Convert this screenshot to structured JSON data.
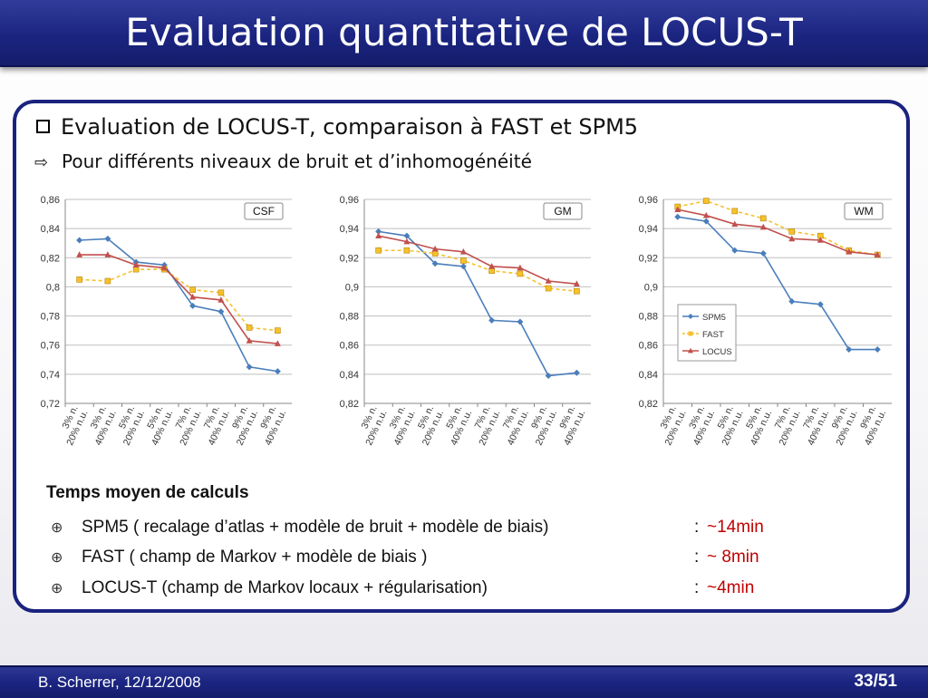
{
  "slide": {
    "title": "Evaluation quantitative de LOCUS-T",
    "bullet_main": "Evaluation de LOCUS-T, comparaison à FAST et SPM5",
    "bullet_sub": "Pour différents niveaux de bruit et d’inhomogénéité",
    "timing_title": "Temps moyen de calculs",
    "timings": [
      {
        "method": "SPM5 ( recalage d’atlas + modèle de bruit + modèle de biais)",
        "sep": ":",
        "value": "~14min"
      },
      {
        "method": "FAST ( champ de Markov + modèle de biais )",
        "sep": ":",
        "value": "~ 8min"
      },
      {
        "method": "LOCUS-T  (champ de Markov locaux + régularisation)",
        "sep": ":",
        "value": "~4min"
      }
    ],
    "footer_left": "B. Scherrer, 12/12/2008",
    "footer_right": "33/51"
  },
  "icons": {
    "bullet_main": "checkbox-icon",
    "bullet_sub": "arrow-right-icon",
    "timing_bullet": "crosshair-icon"
  },
  "colors": {
    "title_bar": "#1b2581",
    "panel_border": "#1a237e",
    "timing_value": "#c00000",
    "SPM5": "#4a7ebb",
    "FAST": "#f6c12b",
    "LOCUS": "#c0504d"
  },
  "chart_data": [
    {
      "type": "line",
      "title": "CSF",
      "categories": [
        [
          "3% n.",
          "20% n.u."
        ],
        [
          "3% n.",
          "40% n.u."
        ],
        [
          "5% n.",
          "20% n.u."
        ],
        [
          "5% n.",
          "40% n.u."
        ],
        [
          "7% n.",
          "20% n.u."
        ],
        [
          "7% n.",
          "40% n.u."
        ],
        [
          "9% n.",
          "20% n.u."
        ],
        [
          "9% n.",
          "40% n.u."
        ]
      ],
      "ylim": [
        0.72,
        0.86
      ],
      "yticks": [
        "0,72",
        "0,74",
        "0,76",
        "0,78",
        "0,8",
        "0,82",
        "0,84",
        "0,86"
      ],
      "grid": true,
      "legend": "none",
      "series": [
        {
          "name": "SPM5",
          "values": [
            0.832,
            0.833,
            0.817,
            0.815,
            0.787,
            0.783,
            0.745,
            0.742
          ]
        },
        {
          "name": "FAST",
          "values": [
            0.805,
            0.804,
            0.812,
            0.812,
            0.798,
            0.796,
            0.772,
            0.77
          ]
        },
        {
          "name": "LOCUS",
          "values": [
            0.822,
            0.822,
            0.815,
            0.813,
            0.793,
            0.791,
            0.763,
            0.761
          ]
        }
      ]
    },
    {
      "type": "line",
      "title": "GM",
      "categories": [
        [
          "3% n.",
          "20% n.u."
        ],
        [
          "3% n.",
          "40% n.u."
        ],
        [
          "5% n.",
          "20% n.u."
        ],
        [
          "5% n.",
          "40% n.u."
        ],
        [
          "7% n.",
          "20% n.u."
        ],
        [
          "7% n.",
          "40% n.u."
        ],
        [
          "9% n.",
          "20% n.u."
        ],
        [
          "9% n.",
          "40% n.u."
        ]
      ],
      "ylim": [
        0.82,
        0.96
      ],
      "yticks": [
        "0,82",
        "0,84",
        "0,86",
        "0,88",
        "0,9",
        "0,92",
        "0,94",
        "0,96"
      ],
      "grid": true,
      "legend": "none",
      "series": [
        {
          "name": "SPM5",
          "values": [
            0.938,
            0.935,
            0.916,
            0.914,
            0.877,
            0.876,
            0.839,
            0.841
          ]
        },
        {
          "name": "FAST",
          "values": [
            0.925,
            0.925,
            0.923,
            0.918,
            0.911,
            0.909,
            0.899,
            0.897
          ]
        },
        {
          "name": "LOCUS",
          "values": [
            0.935,
            0.931,
            0.926,
            0.924,
            0.914,
            0.913,
            0.904,
            0.902
          ]
        }
      ]
    },
    {
      "type": "line",
      "title": "WM",
      "categories": [
        [
          "3% n.",
          "20% n.u."
        ],
        [
          "3% n.",
          "40% n.u."
        ],
        [
          "5% n.",
          "20% n.u."
        ],
        [
          "5% n.",
          "40% n.u."
        ],
        [
          "7% n.",
          "20% n.u."
        ],
        [
          "7% n.",
          "40% n.u."
        ],
        [
          "9% n.",
          "20% n.u."
        ],
        [
          "9% n.",
          "40% n.u."
        ]
      ],
      "ylim": [
        0.82,
        0.96
      ],
      "yticks": [
        "0,82",
        "0,84",
        "0,86",
        "0,88",
        "0,9",
        "0,92",
        "0,94",
        "0,96"
      ],
      "grid": true,
      "legend": "center-left",
      "series": [
        {
          "name": "SPM5",
          "values": [
            0.948,
            0.945,
            0.925,
            0.923,
            0.89,
            0.888,
            0.857,
            0.857
          ]
        },
        {
          "name": "FAST",
          "values": [
            0.955,
            0.959,
            0.952,
            0.947,
            0.938,
            0.935,
            0.925,
            0.922
          ]
        },
        {
          "name": "LOCUS",
          "values": [
            0.953,
            0.949,
            0.943,
            0.941,
            0.933,
            0.932,
            0.924,
            0.922
          ]
        }
      ]
    }
  ]
}
